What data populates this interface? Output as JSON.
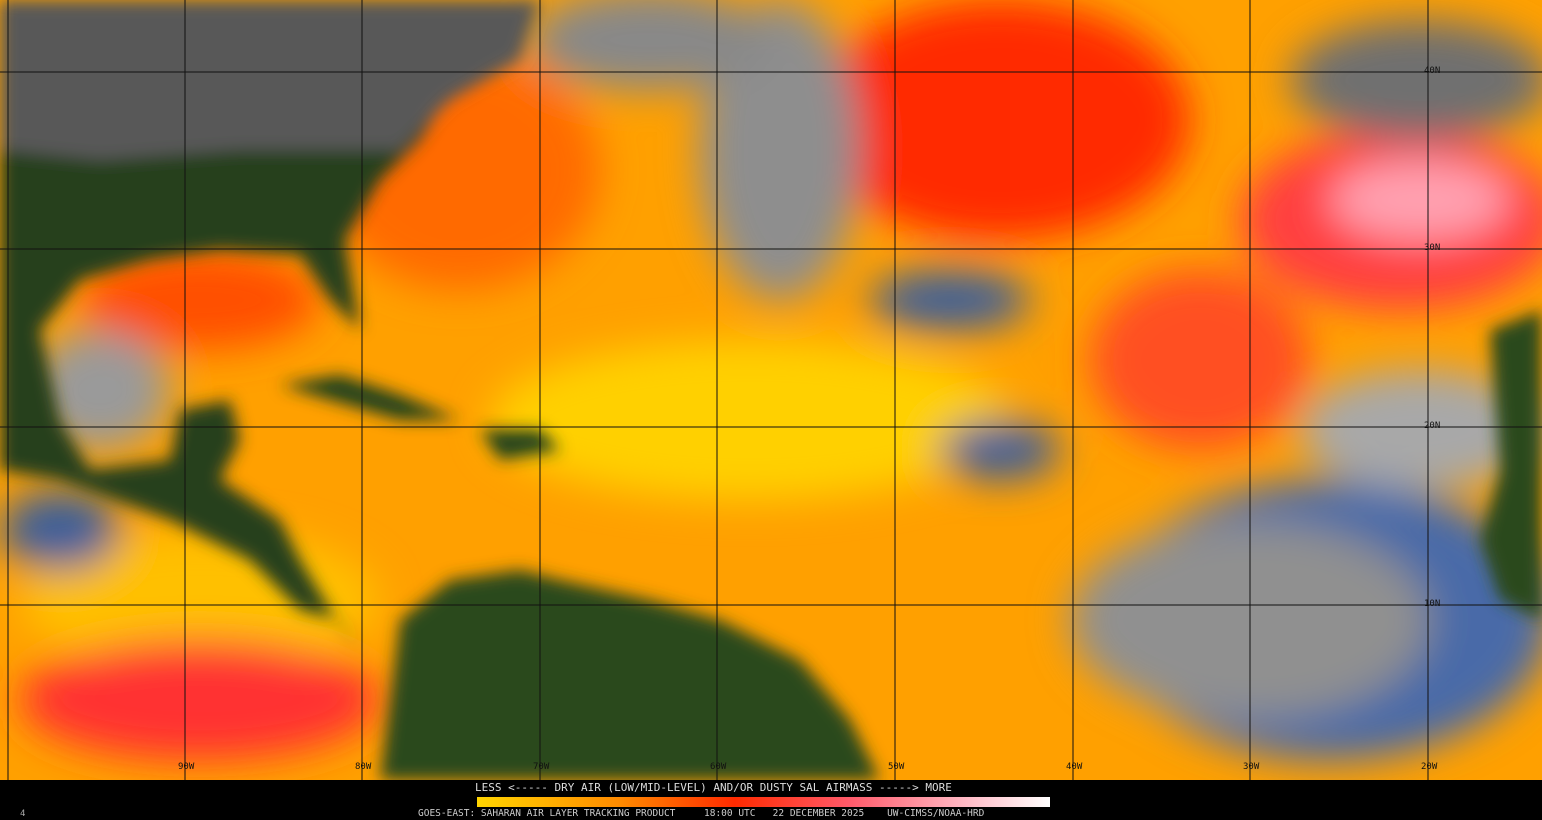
{
  "legend": {
    "title": "LESS <----- DRY AIR (LOW/MID-LEVEL) AND/OR DUSTY SAL AIRMASS -----> MORE",
    "low_label": "LESS",
    "high_label": "MORE",
    "colors": [
      "#ffd400",
      "#ff8a00",
      "#ff2a00",
      "#ff5a6a",
      "#ffb8c4",
      "#ffffff"
    ]
  },
  "footer": {
    "product": "GOES-EAST: SAHARAN AIR LAYER TRACKING PRODUCT",
    "time": "18:00 UTC",
    "date": "22 DECEMBER 2025",
    "credit": "UW-CIMSS/NOAA-HRD"
  },
  "frame_number": "4",
  "longitude_labels": [
    "90W",
    "80W",
    "70W",
    "60W",
    "50W",
    "40W",
    "30W",
    "20W"
  ],
  "latitude_labels": [
    "40N",
    "30N",
    "20N",
    "10N"
  ],
  "colors": {
    "land": "#1e3a12",
    "cloud": "#9a9a9a",
    "moist_ocean": "#3e5f9a",
    "sal_low": "#ffd400",
    "sal_high": "#ff2a00"
  }
}
